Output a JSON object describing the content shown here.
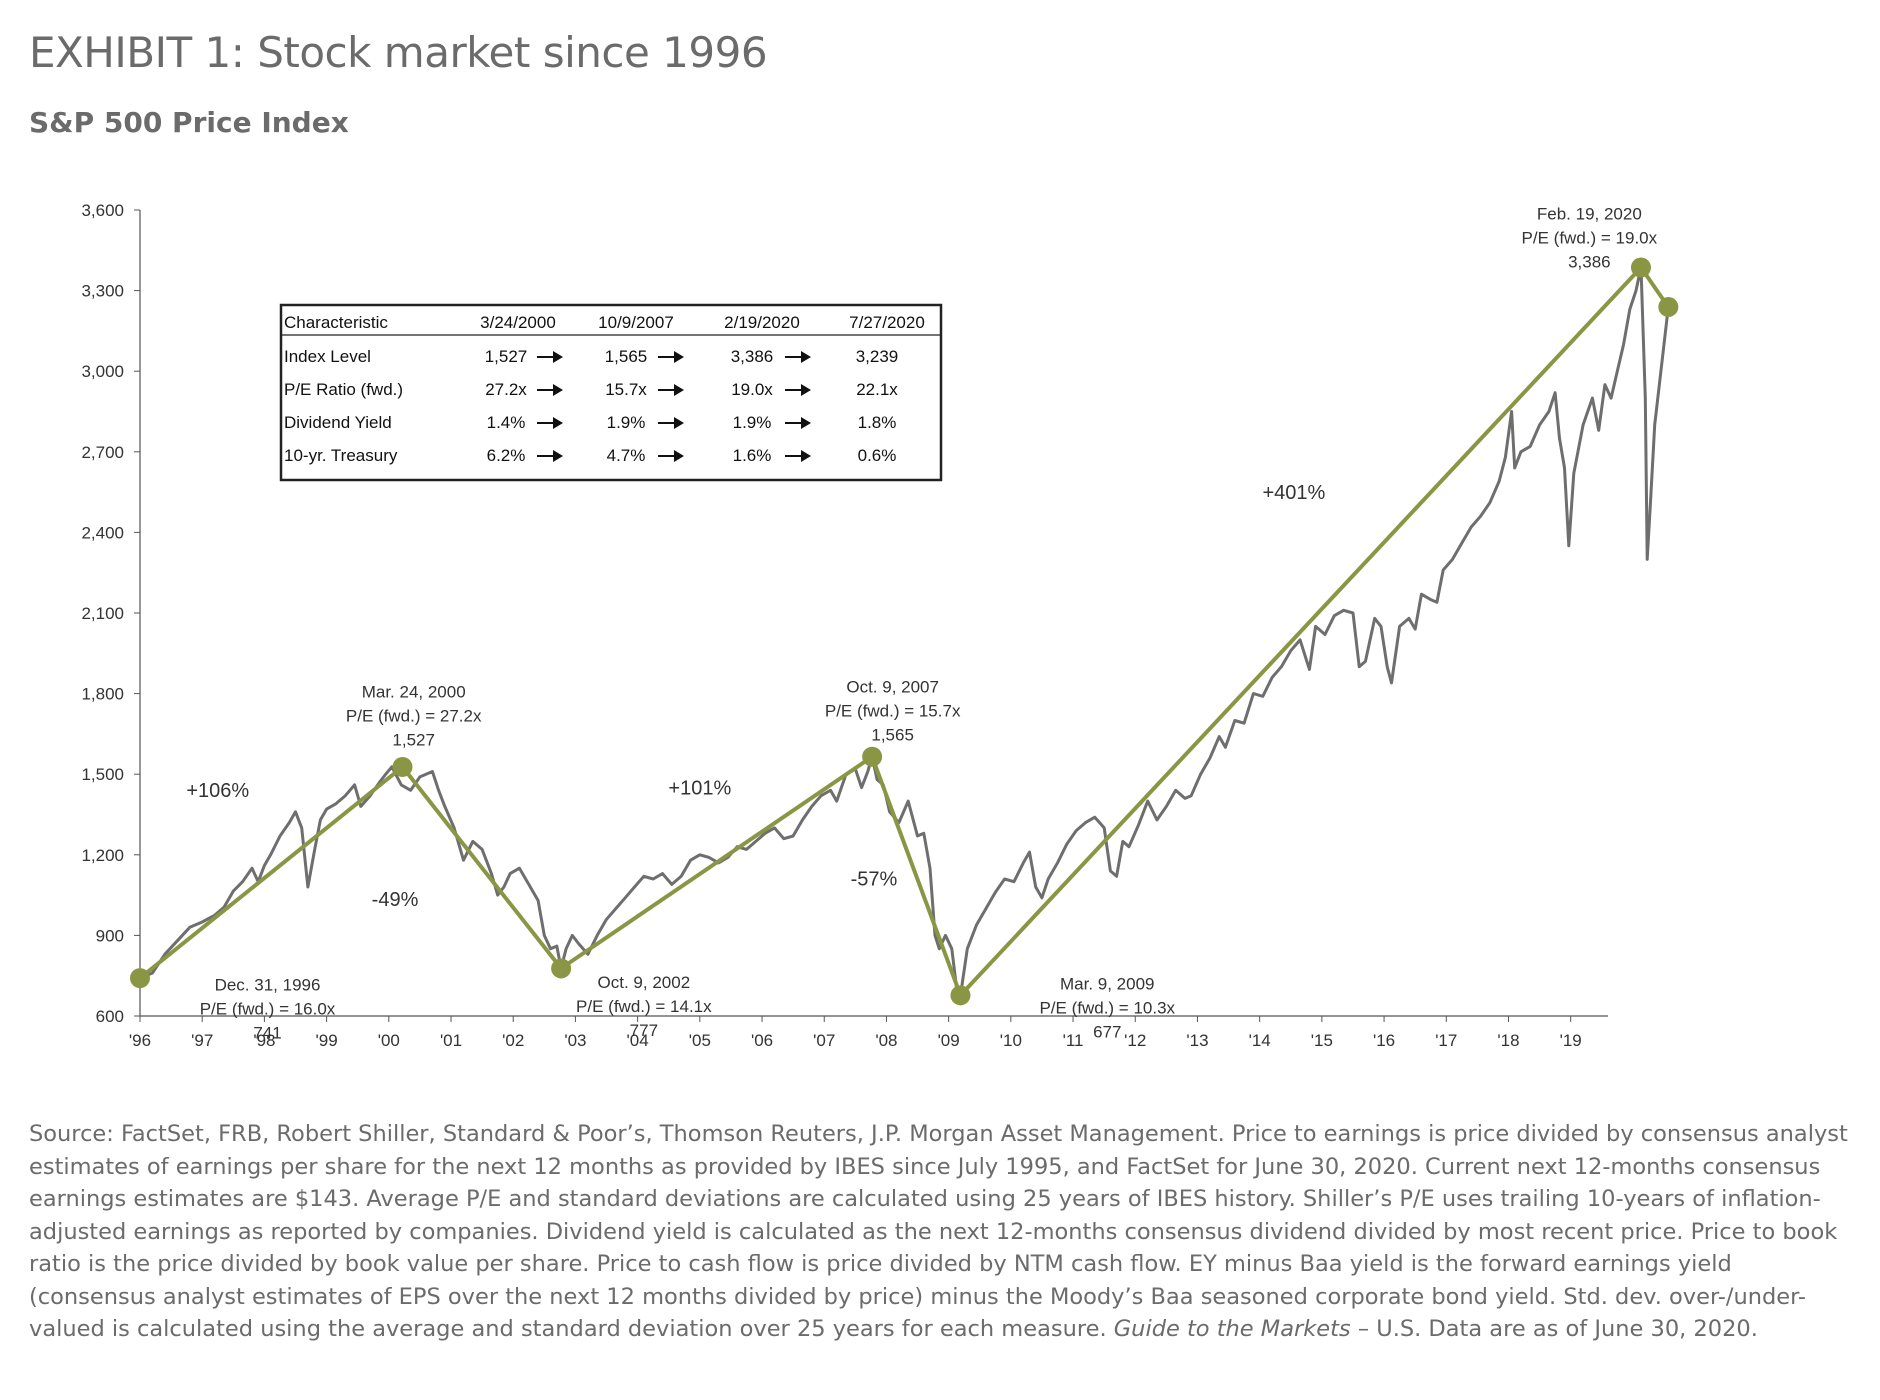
{
  "header": {
    "title": "EXHIBIT 1: Stock market since 1996",
    "subtitle": "S&P 500 Price Index"
  },
  "chart_data": {
    "type": "line",
    "ylim": [
      600,
      3600
    ],
    "yticks": [
      600,
      900,
      1200,
      1500,
      1800,
      2100,
      2400,
      2700,
      3000,
      3300,
      3600
    ],
    "ytick_labels": [
      "600",
      "900",
      "1,200",
      "1,500",
      "1,800",
      "2,100",
      "2,400",
      "2,700",
      "3,000",
      "3,300",
      "3,600"
    ],
    "xlim": [
      1996,
      2019.6
    ],
    "xticks": [
      1996,
      1997,
      1998,
      1999,
      2000,
      2001,
      2002,
      2003,
      2004,
      2005,
      2006,
      2007,
      2008,
      2009,
      2010,
      2011,
      2012,
      2013,
      2014,
      2015,
      2016,
      2017,
      2018,
      2019
    ],
    "xtick_labels": [
      "'96",
      "'97",
      "'98",
      "'99",
      "'00",
      "'01",
      "'02",
      "'03",
      "'04",
      "'05",
      "'06",
      "'07",
      "'08",
      "'09",
      "'10",
      "'11",
      "'12",
      "'13",
      "'14",
      "'15",
      "'16",
      "'17",
      "'18",
      "'19"
    ],
    "colors": {
      "index_line": "#6e6e6e",
      "trend_line": "#8b9645",
      "axis": "#555555"
    },
    "series": [
      {
        "values": [
          [
            1996.0,
            741
          ],
          [
            1996.2,
            760
          ],
          [
            1996.4,
            830
          ],
          [
            1996.6,
            880
          ],
          [
            1996.8,
            930
          ],
          [
            1997.0,
            950
          ],
          [
            1997.2,
            975
          ],
          [
            1997.35,
            1005
          ],
          [
            1997.5,
            1065
          ],
          [
            1997.65,
            1100
          ],
          [
            1997.8,
            1150
          ],
          [
            1997.9,
            1100
          ],
          [
            1998.0,
            1160
          ],
          [
            1998.1,
            1200
          ],
          [
            1998.25,
            1270
          ],
          [
            1998.4,
            1320
          ],
          [
            1998.5,
            1360
          ],
          [
            1998.6,
            1300
          ],
          [
            1998.7,
            1080
          ],
          [
            1998.8,
            1210
          ],
          [
            1998.9,
            1330
          ],
          [
            1999.0,
            1370
          ],
          [
            1999.15,
            1390
          ],
          [
            1999.3,
            1420
          ],
          [
            1999.45,
            1460
          ],
          [
            1999.55,
            1380
          ],
          [
            1999.7,
            1420
          ],
          [
            1999.85,
            1470
          ],
          [
            1999.95,
            1500
          ],
          [
            2000.05,
            1527
          ],
          [
            2000.2,
            1460
          ],
          [
            2000.35,
            1440
          ],
          [
            2000.5,
            1490
          ],
          [
            2000.7,
            1510
          ],
          [
            2000.8,
            1440
          ],
          [
            2000.9,
            1380
          ],
          [
            2001.05,
            1300
          ],
          [
            2001.2,
            1180
          ],
          [
            2001.35,
            1250
          ],
          [
            2001.5,
            1220
          ],
          [
            2001.65,
            1130
          ],
          [
            2001.75,
            1050
          ],
          [
            2001.85,
            1080
          ],
          [
            2001.95,
            1130
          ],
          [
            2002.1,
            1150
          ],
          [
            2002.25,
            1090
          ],
          [
            2002.4,
            1030
          ],
          [
            2002.5,
            900
          ],
          [
            2002.6,
            850
          ],
          [
            2002.7,
            860
          ],
          [
            2002.77,
            777
          ],
          [
            2002.85,
            850
          ],
          [
            2002.95,
            900
          ],
          [
            2003.05,
            870
          ],
          [
            2003.2,
            830
          ],
          [
            2003.35,
            900
          ],
          [
            2003.5,
            960
          ],
          [
            2003.65,
            1000
          ],
          [
            2003.8,
            1040
          ],
          [
            2003.95,
            1080
          ],
          [
            2004.1,
            1120
          ],
          [
            2004.25,
            1110
          ],
          [
            2004.4,
            1130
          ],
          [
            2004.55,
            1090
          ],
          [
            2004.7,
            1120
          ],
          [
            2004.85,
            1180
          ],
          [
            2005.0,
            1200
          ],
          [
            2005.15,
            1190
          ],
          [
            2005.3,
            1170
          ],
          [
            2005.45,
            1190
          ],
          [
            2005.6,
            1230
          ],
          [
            2005.75,
            1220
          ],
          [
            2005.9,
            1250
          ],
          [
            2006.05,
            1280
          ],
          [
            2006.2,
            1300
          ],
          [
            2006.35,
            1260
          ],
          [
            2006.5,
            1270
          ],
          [
            2006.65,
            1330
          ],
          [
            2006.8,
            1380
          ],
          [
            2006.95,
            1420
          ],
          [
            2007.1,
            1440
          ],
          [
            2007.2,
            1400
          ],
          [
            2007.35,
            1500
          ],
          [
            2007.5,
            1520
          ],
          [
            2007.6,
            1450
          ],
          [
            2007.7,
            1510
          ],
          [
            2007.77,
            1565
          ],
          [
            2007.85,
            1480
          ],
          [
            2007.95,
            1460
          ],
          [
            2008.05,
            1360
          ],
          [
            2008.2,
            1320
          ],
          [
            2008.35,
            1400
          ],
          [
            2008.5,
            1270
          ],
          [
            2008.6,
            1280
          ],
          [
            2008.7,
            1150
          ],
          [
            2008.78,
            900
          ],
          [
            2008.85,
            850
          ],
          [
            2008.95,
            900
          ],
          [
            2009.05,
            850
          ],
          [
            2009.13,
            700
          ],
          [
            2009.19,
            677
          ],
          [
            2009.3,
            850
          ],
          [
            2009.45,
            940
          ],
          [
            2009.6,
            1000
          ],
          [
            2009.75,
            1060
          ],
          [
            2009.9,
            1110
          ],
          [
            2010.05,
            1100
          ],
          [
            2010.2,
            1170
          ],
          [
            2010.3,
            1210
          ],
          [
            2010.4,
            1080
          ],
          [
            2010.5,
            1040
          ],
          [
            2010.6,
            1110
          ],
          [
            2010.75,
            1170
          ],
          [
            2010.9,
            1240
          ],
          [
            2011.05,
            1290
          ],
          [
            2011.2,
            1320
          ],
          [
            2011.35,
            1340
          ],
          [
            2011.5,
            1300
          ],
          [
            2011.6,
            1140
          ],
          [
            2011.7,
            1120
          ],
          [
            2011.8,
            1250
          ],
          [
            2011.9,
            1230
          ],
          [
            2012.05,
            1310
          ],
          [
            2012.2,
            1400
          ],
          [
            2012.35,
            1330
          ],
          [
            2012.5,
            1380
          ],
          [
            2012.65,
            1440
          ],
          [
            2012.8,
            1410
          ],
          [
            2012.9,
            1420
          ],
          [
            2013.05,
            1500
          ],
          [
            2013.2,
            1560
          ],
          [
            2013.35,
            1640
          ],
          [
            2013.45,
            1600
          ],
          [
            2013.6,
            1700
          ],
          [
            2013.75,
            1690
          ],
          [
            2013.9,
            1800
          ],
          [
            2014.05,
            1790
          ],
          [
            2014.2,
            1860
          ],
          [
            2014.35,
            1900
          ],
          [
            2014.5,
            1960
          ],
          [
            2014.65,
            2000
          ],
          [
            2014.8,
            1890
          ],
          [
            2014.9,
            2050
          ],
          [
            2015.05,
            2020
          ],
          [
            2015.2,
            2090
          ],
          [
            2015.35,
            2110
          ],
          [
            2015.5,
            2100
          ],
          [
            2015.6,
            1900
          ],
          [
            2015.7,
            1920
          ],
          [
            2015.85,
            2080
          ],
          [
            2015.95,
            2050
          ],
          [
            2016.05,
            1900
          ],
          [
            2016.12,
            1840
          ],
          [
            2016.25,
            2050
          ],
          [
            2016.4,
            2080
          ],
          [
            2016.5,
            2040
          ],
          [
            2016.6,
            2170
          ],
          [
            2016.75,
            2150
          ],
          [
            2016.85,
            2140
          ],
          [
            2016.95,
            2260
          ],
          [
            2017.1,
            2300
          ],
          [
            2017.25,
            2360
          ],
          [
            2017.4,
            2420
          ],
          [
            2017.55,
            2460
          ],
          [
            2017.7,
            2510
          ],
          [
            2017.85,
            2590
          ],
          [
            2017.95,
            2680
          ],
          [
            2018.05,
            2850
          ],
          [
            2018.1,
            2640
          ],
          [
            2018.2,
            2700
          ],
          [
            2018.35,
            2720
          ],
          [
            2018.5,
            2800
          ],
          [
            2018.65,
            2850
          ],
          [
            2018.75,
            2920
          ],
          [
            2018.82,
            2750
          ],
          [
            2018.9,
            2640
          ],
          [
            2018.97,
            2350
          ],
          [
            2019.05,
            2620
          ],
          [
            2019.2,
            2800
          ],
          [
            2019.35,
            2900
          ],
          [
            2019.45,
            2780
          ],
          [
            2019.55,
            2950
          ],
          [
            2019.65,
            2900
          ],
          [
            2019.75,
            3000
          ],
          [
            2019.85,
            3100
          ],
          [
            2019.95,
            3230
          ],
          [
            2020.05,
            3300
          ],
          [
            2020.13,
            3386
          ],
          [
            2020.2,
            2900
          ],
          [
            2020.23,
            2300
          ],
          [
            2020.28,
            2500
          ],
          [
            2020.35,
            2800
          ],
          [
            2020.45,
            3000
          ],
          [
            2020.5,
            3100
          ],
          [
            2020.57,
            3239
          ]
        ]
      }
    ],
    "trend_points": [
      [
        1996.0,
        741
      ],
      [
        2000.22,
        1527
      ],
      [
        2002.77,
        777
      ],
      [
        2007.77,
        1565
      ],
      [
        2009.19,
        677
      ],
      [
        2020.13,
        3386
      ],
      [
        2020.57,
        3239
      ]
    ],
    "point_labels": [
      {
        "lines": [
          "Dec. 31, 1996",
          "P/E (fwd.) = 16.0x",
          "741"
        ],
        "x": 1998.05,
        "y": 695
      },
      {
        "lines": [
          "Mar. 24, 2000",
          "P/E (fwd.) = 27.2x",
          "1,527"
        ],
        "x": 2000.4,
        "y": 1785
      },
      {
        "lines": [
          "Oct. 9, 2002",
          "P/E (fwd.) = 14.1x",
          "777"
        ],
        "x": 2004.1,
        "y": 705
      },
      {
        "lines": [
          "Oct. 9, 2007",
          "P/E (fwd.) = 15.7x",
          "1,565"
        ],
        "x": 2008.1,
        "y": 1805
      },
      {
        "lines": [
          "Mar. 9, 2009",
          "P/E (fwd.) = 10.3x",
          "677"
        ],
        "x": 2011.55,
        "y": 698
      },
      {
        "lines": [
          "Feb. 19, 2020",
          "P/E (fwd.) = 19.0x",
          "3,386"
        ],
        "x": 2019.3,
        "y": 3565
      }
    ],
    "change_labels": [
      {
        "text": "+106%",
        "x": 1997.25,
        "y": 1415
      },
      {
        "text": "-49%",
        "x": 2000.1,
        "y": 1010
      },
      {
        "text": "+101%",
        "x": 2005.0,
        "y": 1425
      },
      {
        "text": "-57%",
        "x": 2007.8,
        "y": 1085
      },
      {
        "text": "+401%",
        "x": 2014.55,
        "y": 2525
      }
    ],
    "table": {
      "headers": [
        "Characteristic",
        "3/24/2000",
        "10/9/2007",
        "2/19/2020",
        "7/27/2020"
      ],
      "rows": [
        {
          "label": "Index Level",
          "values": [
            "1,527",
            "1,565",
            "3,386",
            "3,239"
          ]
        },
        {
          "label": "P/E Ratio (fwd.)",
          "values": [
            "27.2x",
            "15.7x",
            "19.0x",
            "22.1x"
          ]
        },
        {
          "label": "Dividend Yield",
          "values": [
            "1.4%",
            "1.9%",
            "1.9%",
            "1.8%"
          ]
        },
        {
          "label": "10-yr. Treasury",
          "values": [
            "6.2%",
            "4.7%",
            "1.6%",
            "0.6%"
          ]
        }
      ]
    }
  },
  "source": {
    "text_before_italic": "Source: FactSet, FRB, Robert Shiller, Standard & Poor’s, Thomson Reuters, J.P. Morgan Asset Management. Price to earnings is price divided by consensus analyst estimates of earnings per share for the next 12 months as provided by IBES since July 1995, and FactSet for June 30, 2020. Current next 12-months consensus earnings estimates are $143. Average P/E and standard deviations are calculated using 25 years of IBES history. Shiller’s P/E uses trailing 10-years of inflation-adjusted earnings as reported by companies. Dividend yield is calculated as the next 12-months consensus dividend divided by most recent price. Price to book ratio is the price divided by book value per share. Price to cash flow is price divided by NTM cash flow. EY minus Baa yield is the forward earnings yield (consensus analyst estimates of EPS over the next 12 months divided by price) minus the Moody’s Baa seasoned corporate bond yield. Std. dev. over-/under-valued is calculated using the average and standard deviation over 25 years for each measure. ",
    "italic": "Guide to the Markets",
    "text_after_italic": " – U.S. Data are as of June 30, 2020."
  }
}
